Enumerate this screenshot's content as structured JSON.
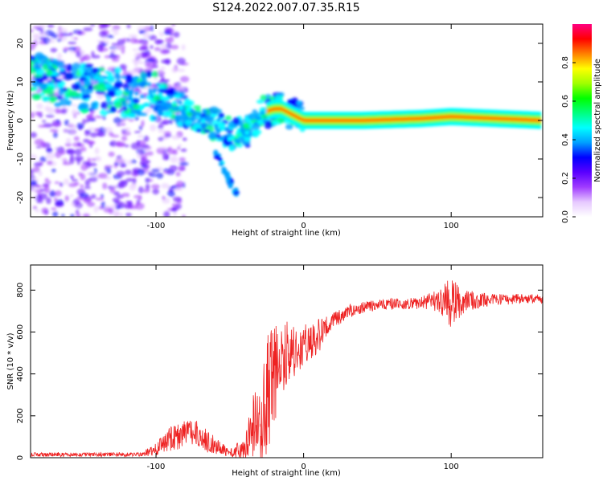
{
  "title": "S124.2022.007.07.35.R15",
  "chart_data": [
    {
      "type": "heatmap",
      "name": "spectrogram",
      "xlabel": "Height of straight line (km)",
      "ylabel": "Frequency (Hz)",
      "xlim": [
        -185,
        162
      ],
      "ylim": [
        -25,
        25
      ],
      "xticks": [
        -100,
        0,
        100
      ],
      "yticks": [
        -20,
        -10,
        0,
        10,
        20
      ],
      "colorbar": {
        "label": "Normalized spectral amplitude",
        "range": [
          0,
          1
        ],
        "ticks": [
          0.0,
          0.2,
          0.4,
          0.6,
          0.8
        ],
        "colors": [
          "#ffffff",
          "#e6c8ff",
          "#a03cff",
          "#5a00ff",
          "#0000ff",
          "#00a0ff",
          "#00ffff",
          "#00ff80",
          "#00ff00",
          "#a0ff00",
          "#ffff00",
          "#ff8000",
          "#ff0000",
          "#ff0080"
        ]
      },
      "tone_path": {
        "x": [
          -185,
          -160,
          -140,
          -120,
          -100,
          -85,
          -70,
          -55,
          -45,
          -35,
          -28,
          -20,
          -15,
          -10,
          -5,
          0,
          40,
          80,
          100,
          162
        ],
        "y": [
          12,
          9,
          8,
          7,
          6,
          3,
          1,
          -2,
          -4,
          -2,
          2,
          3,
          3,
          2,
          1,
          0,
          0,
          0.5,
          1,
          0
        ]
      },
      "branch": {
        "x": [
          -60,
          -55,
          -50,
          -45
        ],
        "y": [
          -8,
          -12,
          -16,
          -19
        ]
      }
    },
    {
      "type": "line",
      "name": "snr",
      "xlabel": "Height of straight line (km)",
      "ylabel": "SNR (10 * v/v)",
      "xlim": [
        -185,
        162
      ],
      "ylim": [
        0,
        920
      ],
      "xticks": [
        -100,
        0,
        100
      ],
      "yticks": [
        0,
        200,
        400,
        600,
        800
      ],
      "series_color": "#ee2222",
      "envelope": {
        "x": [
          -185,
          -150,
          -110,
          -100,
          -90,
          -80,
          -70,
          -60,
          -50,
          -40,
          -35,
          -30,
          -25,
          -20,
          -15,
          -10,
          -5,
          0,
          10,
          20,
          30,
          50,
          80,
          90,
          100,
          110,
          130,
          162
        ],
        "mean": [
          15,
          15,
          15,
          40,
          90,
          120,
          110,
          60,
          20,
          40,
          120,
          200,
          300,
          380,
          450,
          500,
          520,
          540,
          580,
          650,
          700,
          730,
          740,
          750,
          740,
          750,
          755,
          760
        ],
        "amplitude": [
          10,
          10,
          10,
          30,
          60,
          70,
          80,
          40,
          20,
          60,
          150,
          250,
          300,
          250,
          200,
          150,
          120,
          100,
          80,
          40,
          30,
          25,
          30,
          50,
          120,
          50,
          25,
          25
        ]
      }
    }
  ]
}
